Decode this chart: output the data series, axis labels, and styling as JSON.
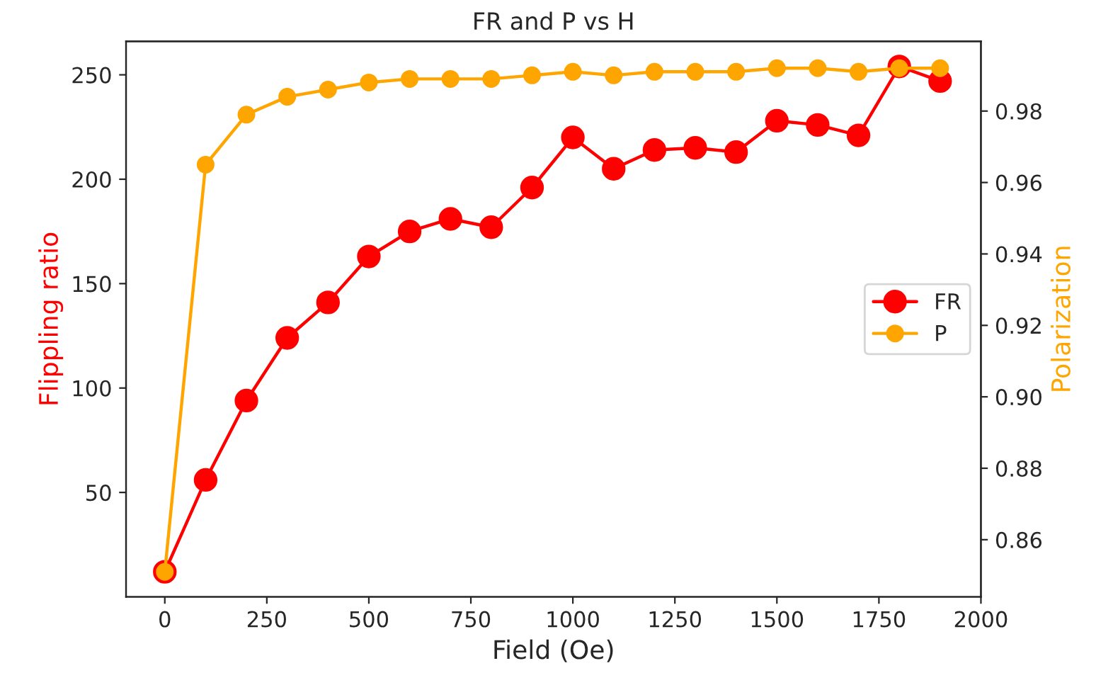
{
  "chart_data": {
    "type": "line",
    "title": "FR and P vs H",
    "xlabel": "Field (Oe)",
    "ylabel": "Flippling ratio",
    "y2label": "Polarization",
    "x": [
      0,
      100,
      200,
      300,
      400,
      500,
      600,
      700,
      800,
      900,
      1000,
      1100,
      1200,
      1300,
      1400,
      1500,
      1600,
      1700,
      1800,
      1900
    ],
    "series": [
      {
        "name": "FR",
        "color": "#ff0000",
        "values": [
          12,
          56,
          94,
          124,
          141,
          163,
          175,
          181,
          177,
          196,
          220,
          205,
          214,
          215,
          213,
          228,
          226,
          221,
          254,
          247
        ]
      },
      {
        "name": "P",
        "color": "#ffa500",
        "axis": "y2",
        "values": [
          0.851,
          0.965,
          0.979,
          0.984,
          0.986,
          0.988,
          0.989,
          0.989,
          0.989,
          0.99,
          0.991,
          0.99,
          0.991,
          0.991,
          0.991,
          0.992,
          0.992,
          0.991,
          0.992,
          0.992
        ]
      }
    ],
    "xlim": [
      -95,
      2000
    ],
    "xticks": [
      0,
      250,
      500,
      750,
      1000,
      1250,
      1500,
      1750,
      2000
    ],
    "ylim": [
      0,
      266
    ],
    "yticks": [
      50,
      100,
      150,
      200,
      250
    ],
    "y2lim": [
      0.844,
      0.9995
    ],
    "y2ticks": [
      {
        "value": 0.86,
        "label": "0.86"
      },
      {
        "value": 0.88,
        "label": "0.88"
      },
      {
        "value": 0.9,
        "label": "0.90"
      },
      {
        "value": 0.92,
        "label": "0.92"
      },
      {
        "value": 0.94,
        "label": "0.94"
      },
      {
        "value": 0.96,
        "label": "0.96"
      },
      {
        "value": 0.98,
        "label": "0.98"
      }
    ],
    "marker": "circle",
    "line_style": "solid",
    "legend": "center right",
    "grid": false
  }
}
